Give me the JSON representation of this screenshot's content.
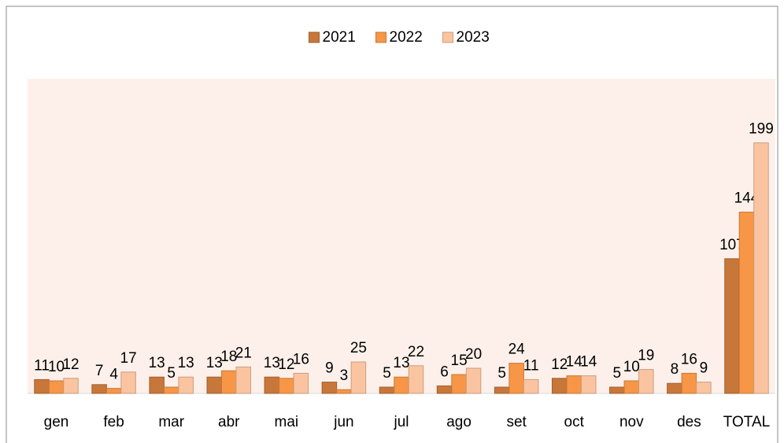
{
  "chart_data": {
    "type": "bar",
    "categories": [
      "gen",
      "feb",
      "mar",
      "abr",
      "mai",
      "jun",
      "jul",
      "ago",
      "set",
      "oct",
      "nov",
      "des",
      "TOTAL"
    ],
    "series": [
      {
        "name": "2021",
        "color": "#c8773a",
        "values": [
          11,
          7,
          13,
          13,
          13,
          9,
          5,
          6,
          5,
          12,
          5,
          8,
          107
        ]
      },
      {
        "name": "2022",
        "color": "#f79646",
        "values": [
          10,
          4,
          5,
          18,
          12,
          3,
          13,
          15,
          24,
          14,
          10,
          16,
          144
        ]
      },
      {
        "name": "2023",
        "color": "#fbc4a0",
        "values": [
          12,
          17,
          13,
          21,
          16,
          25,
          22,
          20,
          11,
          14,
          19,
          9,
          199
        ]
      }
    ],
    "ylim": [
      0,
      250
    ],
    "legend": "top"
  }
}
